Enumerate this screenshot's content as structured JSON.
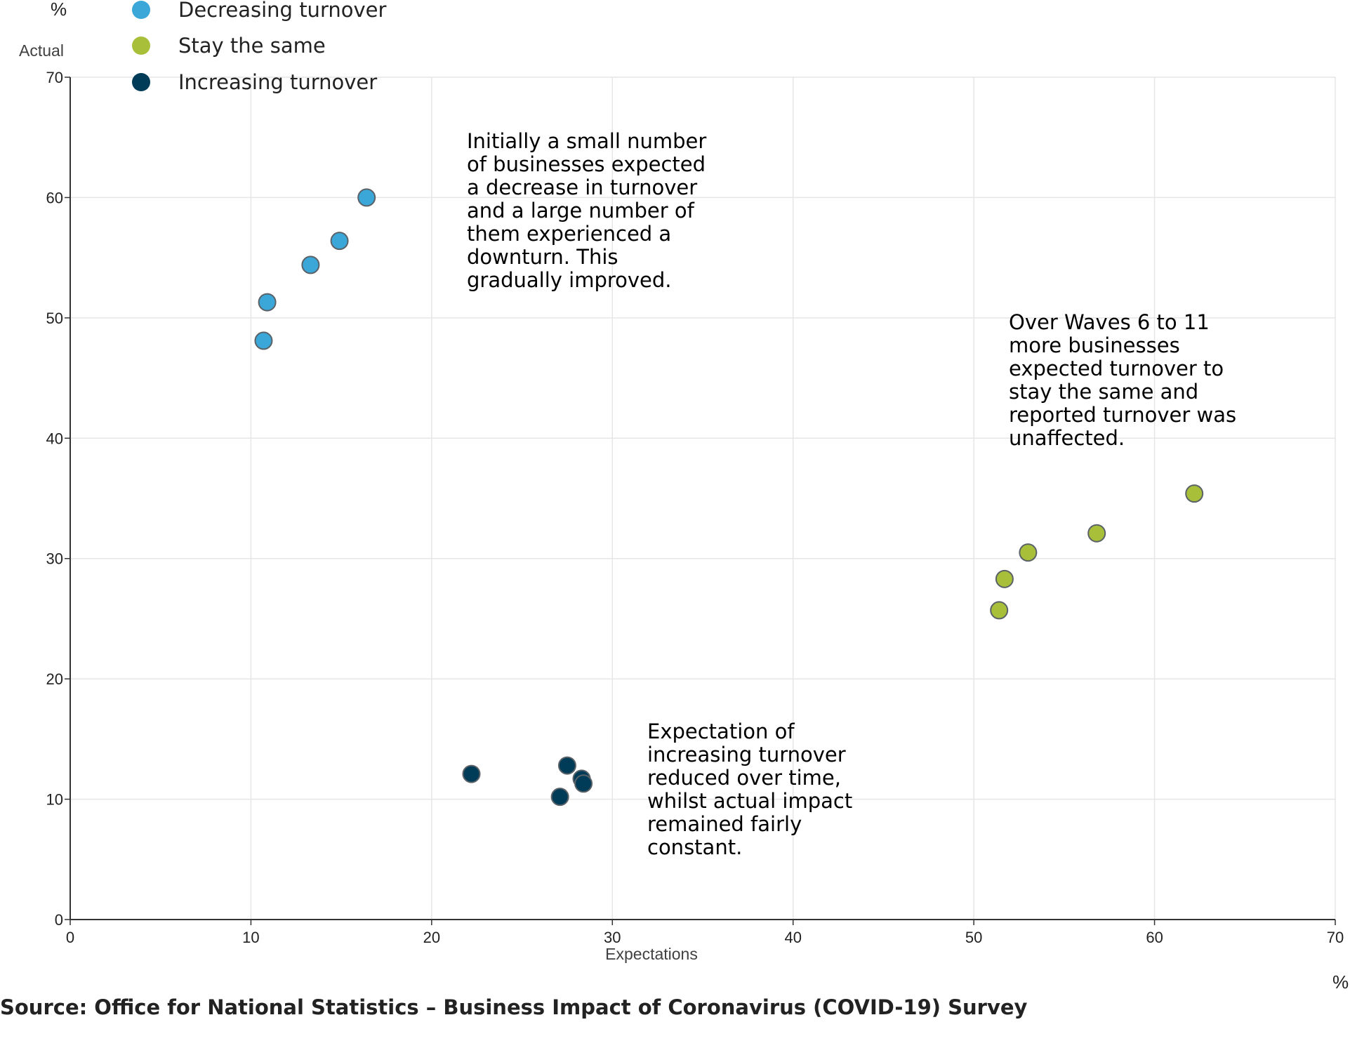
{
  "chart_data": {
    "type": "scatter",
    "title": "",
    "xlabel": "Expectations",
    "ylabel": "Actual",
    "x_unit": "%",
    "y_unit": "%",
    "xlim": [
      0,
      70
    ],
    "ylim": [
      0,
      70
    ],
    "x_ticks": [
      0,
      10,
      20,
      30,
      40,
      50,
      60,
      70
    ],
    "y_ticks": [
      0,
      10,
      20,
      30,
      40,
      50,
      60,
      70
    ],
    "grid": true,
    "legend_position": "top-left",
    "series": [
      {
        "name": "Decreasing turnover",
        "color": "#3aa7d8",
        "points": [
          {
            "x": 16.4,
            "y": 60.0
          },
          {
            "x": 14.9,
            "y": 56.4
          },
          {
            "x": 13.3,
            "y": 54.4
          },
          {
            "x": 10.9,
            "y": 51.3
          },
          {
            "x": 10.7,
            "y": 48.1
          }
        ]
      },
      {
        "name": "Stay the same",
        "color": "#a8bf3a",
        "points": [
          {
            "x": 62.2,
            "y": 35.4
          },
          {
            "x": 56.8,
            "y": 32.1
          },
          {
            "x": 53.0,
            "y": 30.5
          },
          {
            "x": 51.7,
            "y": 28.3
          },
          {
            "x": 51.4,
            "y": 25.7
          }
        ]
      },
      {
        "name": "Increasing turnover",
        "color": "#003c57",
        "points": [
          {
            "x": 22.2,
            "y": 12.1
          },
          {
            "x": 27.5,
            "y": 12.8
          },
          {
            "x": 28.3,
            "y": 11.7
          },
          {
            "x": 28.4,
            "y": 11.3
          },
          {
            "x": 27.1,
            "y": 10.2
          }
        ]
      }
    ],
    "annotations": [
      {
        "lines": [
          "Initially a small number",
          "of businesses expected",
          "a decrease in turnover",
          "and a large number of",
          "them experienced a",
          "downturn. This",
          "gradually improved."
        ]
      },
      {
        "lines": [
          "Over Waves 6 to 11",
          "more businesses",
          "expected turnover to",
          "stay the same and",
          "reported turnover was",
          "unaffected."
        ]
      },
      {
        "lines": [
          "Expectation of",
          "increasing turnover",
          "reduced over time,",
          "whilst actual impact",
          "remained fairly",
          "constant."
        ]
      }
    ]
  },
  "source": "Source: Office for National Statistics – Business Impact of Coronavirus (COVID-19) Survey"
}
